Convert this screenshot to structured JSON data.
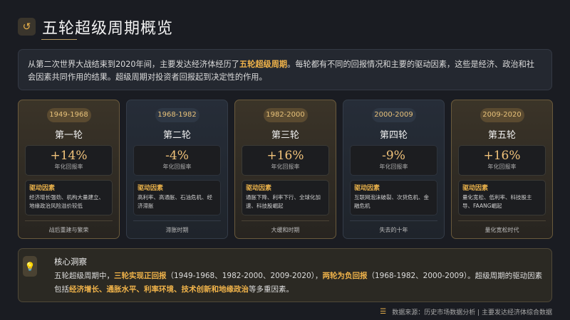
{
  "header": {
    "title": "五轮超级周期概览",
    "icon": "history-icon"
  },
  "intro": {
    "pre": "从第二次世界大战结束到2020年间，主要发达经济体经历了",
    "highlight": "五轮超级周期",
    "post": "。每轮都有不同的回报情况和主要的驱动因素，这些是经济、政治和社会因素共同作用的结果。超级周期对投资者回报起到决定性的作用。"
  },
  "cards": [
    {
      "period": "1949-1968",
      "name": "第一轮",
      "return": "+14%",
      "return_label": "年化回报率",
      "drivers_title": "驱动因素",
      "drivers": "经济增长强劲、机构大量建立、地缘政治风险溢价较低",
      "footer": "战后重建与繁荣",
      "theme": "gold"
    },
    {
      "period": "1968-1982",
      "name": "第二轮",
      "return": "-4%",
      "return_label": "年化回报率",
      "drivers_title": "驱动因素",
      "drivers": "高利率、高通胀、石油危机、经济滞胀",
      "footer": "滞胀时期",
      "theme": "blue"
    },
    {
      "period": "1982-2000",
      "name": "第三轮",
      "return": "+16%",
      "return_label": "年化回报率",
      "drivers_title": "驱动因素",
      "drivers": "通胀下降、利率下行、全球化加速、科技股崛起",
      "footer": "大缓和时期",
      "theme": "gold"
    },
    {
      "period": "2000-2009",
      "name": "第四轮",
      "return": "-9%",
      "return_label": "年化回报率",
      "drivers_title": "驱动因素",
      "drivers": "互联网泡沫破裂、次贷危机、金融危机",
      "footer": "失去的十年",
      "theme": "blue"
    },
    {
      "period": "2009-2020",
      "name": "第五轮",
      "return": "+16%",
      "return_label": "年化回报率",
      "drivers_title": "驱动因素",
      "drivers": "量化宽松、低利率、科技股主导、FAANG崛起",
      "footer": "量化宽松时代",
      "theme": "gold"
    }
  ],
  "insight": {
    "title": "核心洞察",
    "icon": "lightbulb-icon",
    "p1": "五轮超级周期中，",
    "h1": "三轮实现正回报",
    "p2": "（1949-1968、1982-2000、2009-2020），",
    "h2": "两轮为负回报",
    "p3": "（1968-1982、2000-2009）。超级周期的驱动因素包括",
    "h3": "经济增长、通胀水平、利率环境、技术创新和地缘政治",
    "p4": "等多重因素。"
  },
  "source": {
    "icon": "database-icon",
    "text": "数据来源：历史市场数据分析 | 主要发达经济体综合数据"
  },
  "colors": {
    "accent": "#f0b34a",
    "background": "#1a1c22"
  }
}
